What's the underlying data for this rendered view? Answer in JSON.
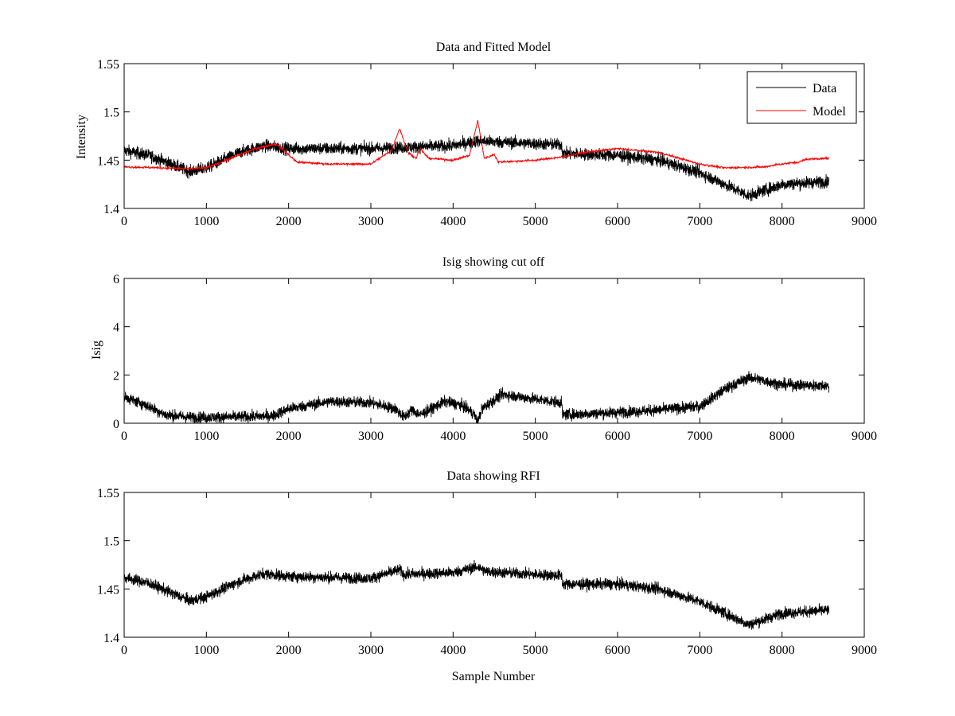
{
  "chart_data": [
    {
      "type": "line",
      "title": "Data and Fitted Model",
      "xlabel": "",
      "ylabel": "Intensity",
      "xlim": [
        0,
        9000
      ],
      "ylim": [
        1.4,
        1.55
      ],
      "xticks": [
        "0",
        "1000",
        "2000",
        "3000",
        "4000",
        "5000",
        "6000",
        "7000",
        "8000",
        "9000"
      ],
      "yticks": [
        "1.4",
        "1.45",
        "1.5",
        "1.55"
      ],
      "legend": {
        "position": "top-right",
        "entries": [
          "Data",
          "Model"
        ]
      },
      "series": [
        {
          "name": "Data",
          "color": "#000000",
          "style": "noisy",
          "noise": 0.006,
          "x": [
            0,
            300,
            600,
            800,
            1000,
            1400,
            1700,
            2000,
            3000,
            4000,
            4300,
            5000,
            5320,
            5330,
            6000,
            6500,
            7000,
            7500,
            7600,
            8000,
            8570
          ],
          "y": [
            1.46,
            1.455,
            1.445,
            1.438,
            1.442,
            1.458,
            1.465,
            1.462,
            1.462,
            1.465,
            1.47,
            1.467,
            1.466,
            1.457,
            1.455,
            1.45,
            1.437,
            1.417,
            1.413,
            1.425,
            1.428
          ]
        },
        {
          "name": "Model",
          "color": "#ff0000",
          "style": "smooth",
          "noise": 0.001,
          "x": [
            0,
            500,
            800,
            1000,
            1300,
            1600,
            1850,
            2100,
            2500,
            3000,
            3250,
            3350,
            3450,
            3550,
            3600,
            3700,
            4000,
            4200,
            4300,
            4380,
            4450,
            4500,
            4550,
            5000,
            5300,
            5600,
            6000,
            6500,
            7000,
            7300,
            7800,
            7900,
            8200,
            8300,
            8570
          ],
          "y": [
            1.443,
            1.442,
            1.441,
            1.442,
            1.452,
            1.462,
            1.467,
            1.448,
            1.446,
            1.446,
            1.46,
            1.483,
            1.458,
            1.452,
            1.462,
            1.452,
            1.45,
            1.455,
            1.491,
            1.452,
            1.454,
            1.456,
            1.448,
            1.45,
            1.453,
            1.458,
            1.462,
            1.458,
            1.446,
            1.442,
            1.443,
            1.445,
            1.448,
            1.451,
            1.452
          ]
        }
      ]
    },
    {
      "type": "line",
      "title": "Isig showing cut off",
      "xlabel": "",
      "ylabel": "Isig",
      "xlim": [
        0,
        9000
      ],
      "ylim": [
        0,
        6
      ],
      "xticks": [
        "0",
        "1000",
        "2000",
        "3000",
        "4000",
        "5000",
        "6000",
        "7000",
        "8000",
        "9000"
      ],
      "yticks": [
        "0",
        "2",
        "4",
        "6"
      ],
      "series": [
        {
          "color": "#000000",
          "style": "noisy",
          "noise": 0.22,
          "x": [
            0,
            300,
            500,
            800,
            1200,
            1800,
            2000,
            2500,
            3000,
            3300,
            3400,
            3500,
            3600,
            3900,
            4100,
            4250,
            4300,
            4350,
            4600,
            5000,
            5320,
            5330,
            6000,
            6500,
            7000,
            7300,
            7600,
            8000,
            8570
          ],
          "y": [
            1.1,
            0.7,
            0.35,
            0.25,
            0.25,
            0.3,
            0.6,
            0.9,
            0.85,
            0.6,
            0.25,
            0.55,
            0.35,
            0.9,
            0.75,
            0.4,
            0.05,
            0.6,
            1.2,
            1.0,
            0.85,
            0.35,
            0.45,
            0.55,
            0.7,
            1.4,
            1.9,
            1.6,
            1.55
          ]
        }
      ]
    },
    {
      "type": "line",
      "title": "Data showing RFI",
      "xlabel": "Sample Number",
      "ylabel": "",
      "xlim": [
        0,
        9000
      ],
      "ylim": [
        1.4,
        1.55
      ],
      "xticks": [
        "0",
        "1000",
        "2000",
        "3000",
        "4000",
        "5000",
        "6000",
        "7000",
        "8000",
        "9000"
      ],
      "yticks": [
        "1.4",
        "1.45",
        "1.5",
        "1.55"
      ],
      "series": [
        {
          "color": "#000000",
          "style": "noisy",
          "noise": 0.0055,
          "x": [
            0,
            300,
            600,
            800,
            1000,
            1400,
            1700,
            2000,
            3000,
            3350,
            3400,
            4000,
            4300,
            4400,
            5000,
            5320,
            5330,
            6000,
            6500,
            7000,
            7500,
            7600,
            8000,
            8570
          ],
          "y": [
            1.462,
            1.456,
            1.445,
            1.438,
            1.442,
            1.458,
            1.466,
            1.463,
            1.461,
            1.47,
            1.465,
            1.467,
            1.473,
            1.468,
            1.465,
            1.464,
            1.455,
            1.455,
            1.45,
            1.437,
            1.417,
            1.413,
            1.425,
            1.428
          ]
        }
      ]
    }
  ]
}
